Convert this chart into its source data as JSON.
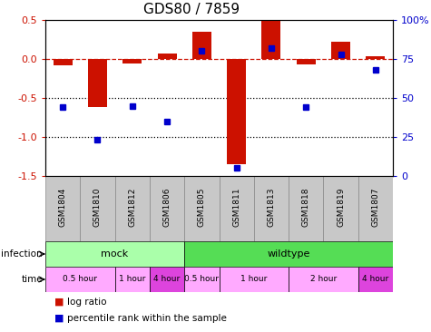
{
  "title": "GDS80 / 7859",
  "samples": [
    "GSM1804",
    "GSM1810",
    "GSM1812",
    "GSM1806",
    "GSM1805",
    "GSM1811",
    "GSM1813",
    "GSM1818",
    "GSM1819",
    "GSM1807"
  ],
  "log_ratio": [
    -0.08,
    -0.62,
    -0.06,
    0.07,
    0.35,
    -1.35,
    0.5,
    -0.07,
    0.22,
    0.04
  ],
  "percentile": [
    44,
    23,
    45,
    35,
    80,
    5,
    82,
    44,
    78,
    68
  ],
  "ylim_left": [
    -1.5,
    0.5
  ],
  "ylim_right": [
    0,
    100
  ],
  "yticks_left": [
    0.5,
    0.0,
    -0.5,
    -1.0,
    -1.5
  ],
  "yticks_right": [
    100,
    75,
    50,
    25,
    0
  ],
  "bar_color": "#CC1100",
  "dot_color": "#0000CC",
  "dashed_line_color": "#CC1100",
  "dotted_line_color": "#000000",
  "infection_groups": [
    {
      "label": "mock",
      "start": 0,
      "end": 4,
      "color": "#AAFFAA"
    },
    {
      "label": "wildtype",
      "start": 4,
      "end": 10,
      "color": "#55DD55"
    }
  ],
  "time_groups": [
    {
      "label": "0.5 hour",
      "start": 0,
      "end": 2,
      "color": "#FFAAFF"
    },
    {
      "label": "1 hour",
      "start": 2,
      "end": 3,
      "color": "#FFAAFF"
    },
    {
      "label": "4 hour",
      "start": 3,
      "end": 4,
      "color": "#DD44DD"
    },
    {
      "label": "0.5 hour",
      "start": 4,
      "end": 5,
      "color": "#FFAAFF"
    },
    {
      "label": "1 hour",
      "start": 5,
      "end": 7,
      "color": "#FFAAFF"
    },
    {
      "label": "2 hour",
      "start": 7,
      "end": 9,
      "color": "#FFAAFF"
    },
    {
      "label": "4 hour",
      "start": 9,
      "end": 10,
      "color": "#DD44DD"
    }
  ],
  "legend_items": [
    "log ratio",
    "percentile rank within the sample"
  ],
  "sample_bg_color": "#C8C8C8",
  "sample_edge_color": "#888888"
}
